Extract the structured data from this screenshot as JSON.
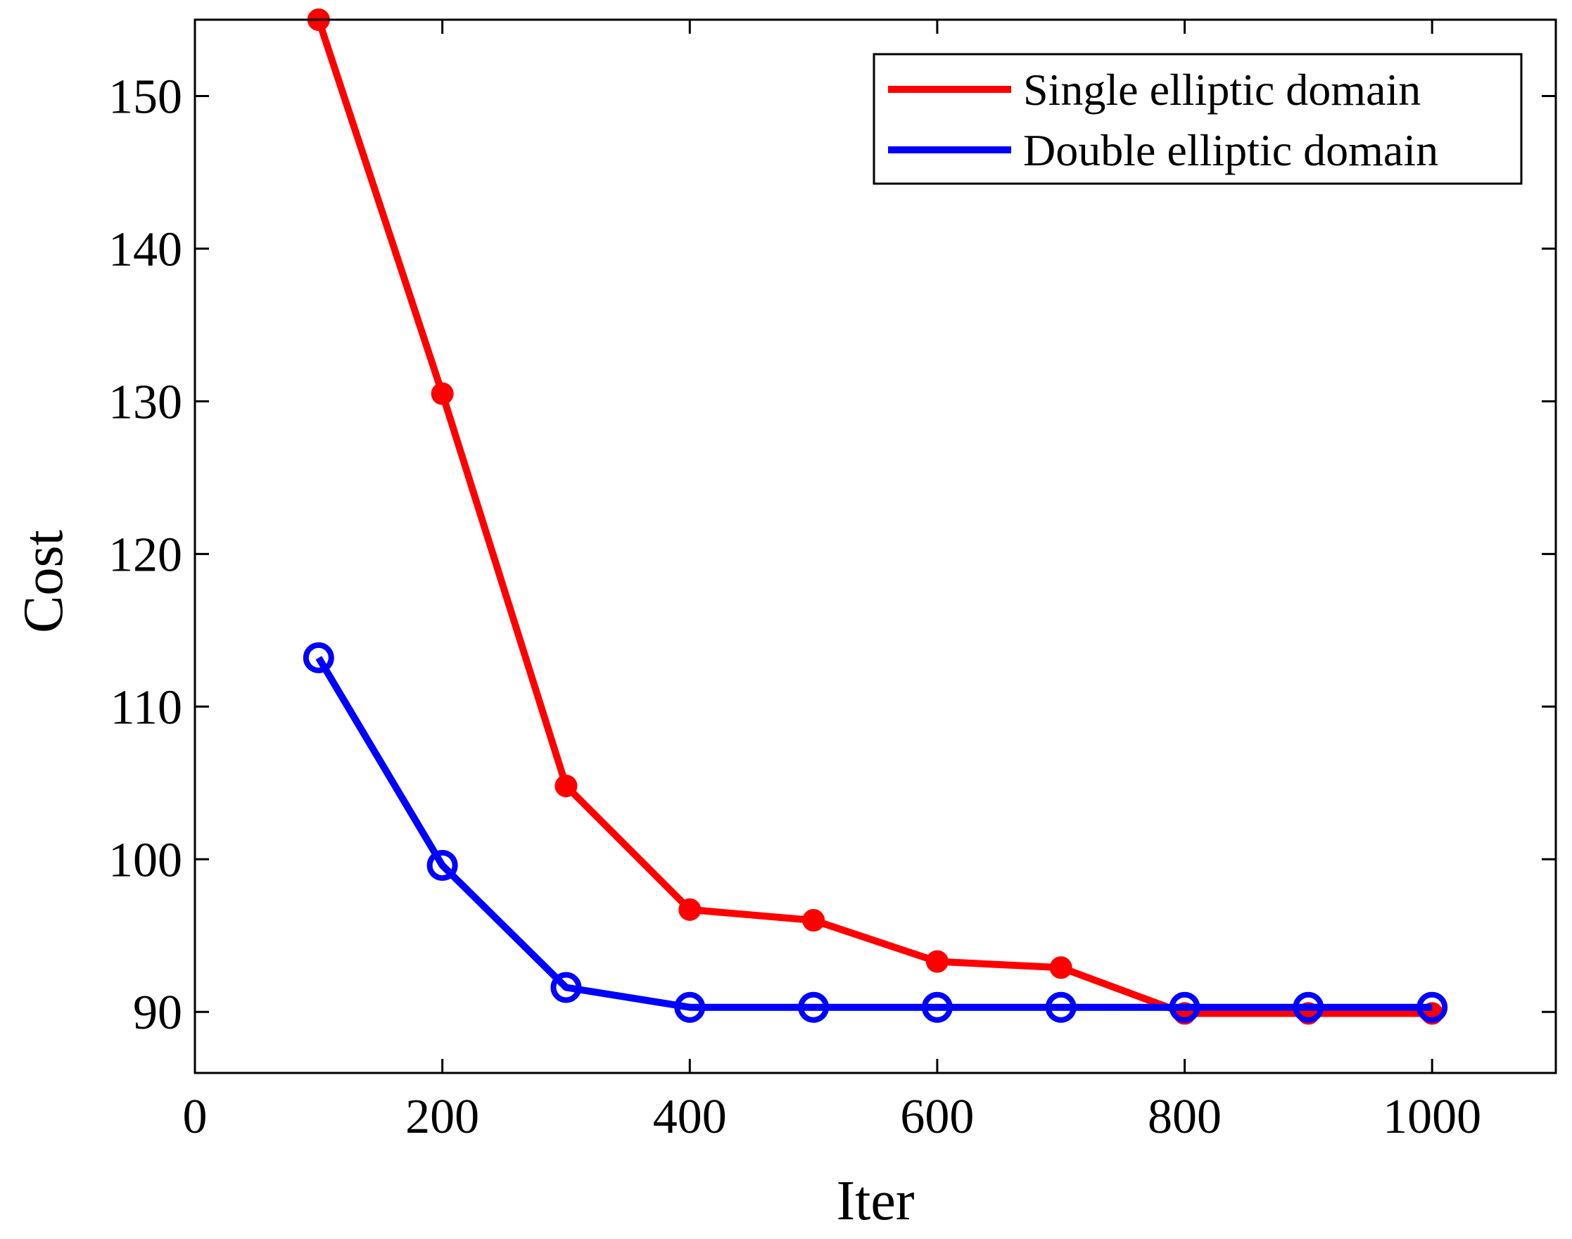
{
  "chart_data": {
    "type": "line",
    "title": "",
    "xlabel": "Iter",
    "ylabel": "Cost",
    "xlim": [
      0,
      1100
    ],
    "ylim": [
      86,
      155
    ],
    "xticks": [
      0,
      200,
      400,
      600,
      800,
      1000
    ],
    "yticks": [
      90,
      100,
      110,
      120,
      130,
      140,
      150
    ],
    "grid": false,
    "legend_position": "top-right",
    "x": [
      100,
      200,
      300,
      400,
      500,
      600,
      700,
      800,
      900,
      1000
    ],
    "series": [
      {
        "name": "Single elliptic domain",
        "color": "#ff0000",
        "marker": "filled-circle",
        "values": [
          155,
          130.5,
          104.8,
          96.7,
          96.0,
          93.3,
          92.9,
          89.9,
          89.9,
          89.9
        ]
      },
      {
        "name": "Double elliptic domain",
        "color": "#0000ff",
        "marker": "open-circle",
        "values": [
          113.2,
          99.6,
          91.6,
          90.3,
          90.3,
          90.3,
          90.3,
          90.3,
          90.3,
          90.3
        ]
      }
    ]
  }
}
